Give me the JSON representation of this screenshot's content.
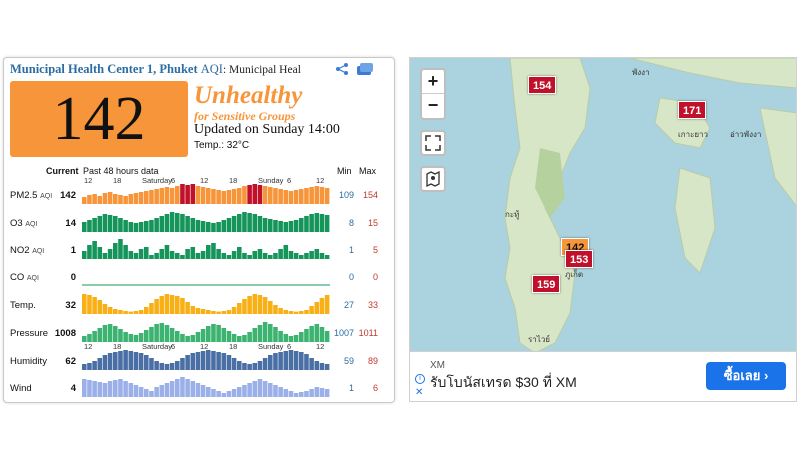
{
  "station": {
    "name": "Municipal Health Center 1, Phuket",
    "aqi_label": "AQI",
    "sub_name": ": Municipal Heal"
  },
  "aqi": {
    "value": "142",
    "status_main": "Unhealthy",
    "status_sub": "for Sensitive Groups",
    "updated": "Updated on Sunday 14:00",
    "temp_label": "Temp.:",
    "temp_value": "32°C",
    "color": "#f7953a"
  },
  "table": {
    "current_header": "Current",
    "past_header": "Past 48 hours data",
    "min_header": "Min",
    "max_header": "Max",
    "time_ticks": [
      "12",
      "18",
      "Saturday",
      "6",
      "12",
      "18",
      "Sunday",
      "6",
      "12"
    ],
    "rows": [
      {
        "label": "PM2.5",
        "unit": "AQI",
        "current": "142",
        "min": "109",
        "max": "154",
        "color": "#f7953a",
        "values": [
          0.35,
          0.45,
          0.5,
          0.4,
          0.55,
          0.6,
          0.5,
          0.45,
          0.4,
          0.5,
          0.55,
          0.6,
          0.65,
          0.7,
          0.75,
          0.8,
          0.85,
          0.8,
          0.9,
          1,
          0.95,
          1,
          0.9,
          0.85,
          0.8,
          0.75,
          0.7,
          0.65,
          0.7,
          0.75,
          0.8,
          0.9,
          0.95,
          1,
          0.95,
          0.9,
          0.85,
          0.8,
          0.75,
          0.7,
          0.65,
          0.7,
          0.75,
          0.8,
          0.85,
          0.9,
          0.85,
          0.8
        ]
      },
      {
        "label": "O3",
        "unit": "AQI",
        "current": "14",
        "min": "8",
        "max": "15",
        "color": "#16955b",
        "values": [
          0.5,
          0.6,
          0.7,
          0.8,
          0.9,
          0.85,
          0.8,
          0.7,
          0.6,
          0.5,
          0.45,
          0.5,
          0.55,
          0.6,
          0.7,
          0.8,
          0.9,
          1,
          0.95,
          0.9,
          0.8,
          0.7,
          0.6,
          0.55,
          0.5,
          0.45,
          0.5,
          0.6,
          0.7,
          0.8,
          0.9,
          1,
          0.95,
          0.9,
          0.8,
          0.7,
          0.65,
          0.6,
          0.55,
          0.5,
          0.55,
          0.6,
          0.7,
          0.8,
          0.9,
          0.95,
          0.9,
          0.85
        ]
      },
      {
        "label": "NO2",
        "unit": "AQI",
        "current": "1",
        "min": "1",
        "max": "5",
        "color": "#16955b",
        "values": [
          0.4,
          0.7,
          0.9,
          0.6,
          0.3,
          0.5,
          0.8,
          1,
          0.7,
          0.4,
          0.3,
          0.5,
          0.6,
          0.2,
          0.3,
          0.5,
          0.7,
          0.4,
          0.3,
          0.2,
          0.5,
          0.6,
          0.3,
          0.4,
          0.7,
          0.8,
          0.5,
          0.3,
          0.2,
          0.4,
          0.6,
          0.3,
          0.2,
          0.4,
          0.5,
          0.3,
          0.2,
          0.3,
          0.5,
          0.7,
          0.4,
          0.3,
          0.2,
          0.3,
          0.4,
          0.5,
          0.3,
          0.2
        ]
      },
      {
        "label": "CO",
        "unit": "AQI",
        "current": "0",
        "min": "0",
        "max": "0",
        "color": "#16955b",
        "values": []
      },
      {
        "label": "Temp.",
        "unit": "",
        "current": "32",
        "min": "27",
        "max": "33",
        "color": "#f9b016",
        "values": [
          1,
          0.95,
          0.85,
          0.7,
          0.5,
          0.35,
          0.25,
          0.2,
          0.15,
          0.12,
          0.15,
          0.2,
          0.35,
          0.55,
          0.75,
          0.9,
          1,
          0.95,
          0.9,
          0.8,
          0.6,
          0.4,
          0.3,
          0.25,
          0.2,
          0.15,
          0.12,
          0.15,
          0.2,
          0.35,
          0.55,
          0.75,
          0.9,
          1,
          0.95,
          0.85,
          0.65,
          0.45,
          0.3,
          0.2,
          0.15,
          0.12,
          0.15,
          0.2,
          0.4,
          0.6,
          0.8,
          0.95
        ]
      },
      {
        "label": "Pressure",
        "unit": "",
        "current": "1008",
        "min": "1007",
        "max": "1011",
        "color": "#3cb371",
        "values": [
          0.3,
          0.4,
          0.55,
          0.7,
          0.85,
          0.9,
          0.8,
          0.65,
          0.5,
          0.4,
          0.35,
          0.45,
          0.6,
          0.75,
          0.9,
          0.95,
          0.85,
          0.7,
          0.55,
          0.4,
          0.3,
          0.35,
          0.5,
          0.65,
          0.8,
          0.9,
          0.85,
          0.7,
          0.55,
          0.4,
          0.3,
          0.35,
          0.5,
          0.7,
          0.85,
          1,
          0.9,
          0.75,
          0.55,
          0.4,
          0.3,
          0.35,
          0.5,
          0.65,
          0.8,
          0.9,
          0.75,
          0.55
        ]
      },
      {
        "label": "Humidity",
        "unit": "",
        "current": "62",
        "min": "59",
        "max": "89",
        "color": "#4a6fa5",
        "values": [
          0.3,
          0.35,
          0.45,
          0.6,
          0.75,
          0.85,
          0.9,
          0.95,
          1,
          0.95,
          0.9,
          0.85,
          0.75,
          0.6,
          0.45,
          0.35,
          0.3,
          0.35,
          0.45,
          0.6,
          0.75,
          0.85,
          0.9,
          0.95,
          1,
          0.95,
          0.9,
          0.85,
          0.75,
          0.6,
          0.45,
          0.35,
          0.3,
          0.35,
          0.45,
          0.6,
          0.75,
          0.85,
          0.9,
          0.95,
          1,
          0.95,
          0.9,
          0.8,
          0.6,
          0.45,
          0.35,
          0.3
        ]
      },
      {
        "label": "Wind",
        "unit": "",
        "current": "4",
        "min": "1",
        "max": "6",
        "color": "#9bb0e8",
        "values": [
          0.9,
          0.85,
          0.8,
          0.75,
          0.7,
          0.8,
          0.85,
          0.9,
          0.8,
          0.7,
          0.6,
          0.5,
          0.4,
          0.3,
          0.5,
          0.6,
          0.7,
          0.8,
          0.9,
          1,
          0.9,
          0.8,
          0.7,
          0.6,
          0.5,
          0.4,
          0.3,
          0.2,
          0.3,
          0.4,
          0.5,
          0.6,
          0.7,
          0.8,
          0.9,
          0.8,
          0.7,
          0.6,
          0.5,
          0.4,
          0.3,
          0.2,
          0.25,
          0.3,
          0.4,
          0.5,
          0.45,
          0.4
        ]
      }
    ]
  },
  "map": {
    "zoom_in": "+",
    "zoom_out": "−",
    "markers": [
      {
        "value": "154",
        "color": "red"
      },
      {
        "value": "171",
        "color": "red"
      },
      {
        "value": "142",
        "color": "orange"
      },
      {
        "value": "153",
        "color": "red"
      },
      {
        "value": "159",
        "color": "red"
      }
    ],
    "labels": [
      "พังงา",
      "เกาะยาว",
      "อ่าวพังงา",
      "กะทู้",
      "ภูเก็ต",
      "ราไวย์"
    ]
  },
  "ad": {
    "brand": "XM",
    "text": "รับโบนัสเทรด $30 ที่ XM",
    "button": "ซื้อเลย",
    "info_glyph": "i",
    "close_glyph": "✕"
  }
}
